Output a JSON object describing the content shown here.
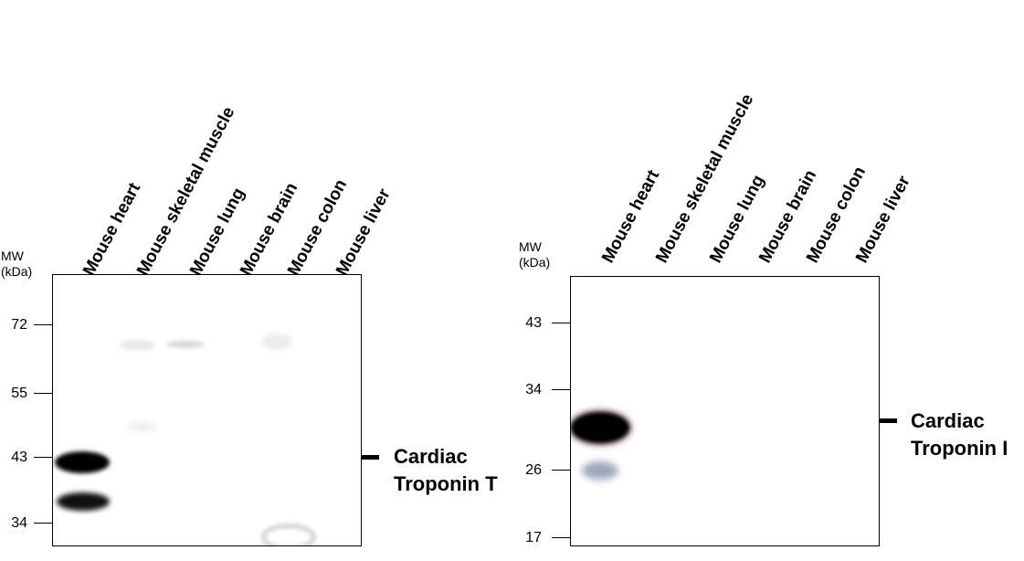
{
  "panels": [
    {
      "id": "troponin-t",
      "mw_title": [
        "MW",
        "(kDa)"
      ],
      "lanes": [
        "Mouse heart",
        "Mouse skeletal muscle",
        "Mouse lung",
        "Mouse brain",
        "Mouse colon",
        "Mouse liver"
      ],
      "mw_markers": [
        "72",
        "55",
        "43",
        "34"
      ],
      "protein_label": [
        "Cardiac",
        "Troponin T"
      ]
    },
    {
      "id": "troponin-i",
      "mw_title": [
        "MW",
        "(kDa)"
      ],
      "lanes": [
        "Mouse heart",
        "Mouse skeletal muscle",
        "Mouse lung",
        "Mouse brain",
        "Mouse colon",
        "Mouse liver"
      ],
      "mw_markers": [
        "43",
        "34",
        "26",
        "17"
      ],
      "protein_label": [
        "Cardiac",
        "Troponin I"
      ]
    }
  ]
}
